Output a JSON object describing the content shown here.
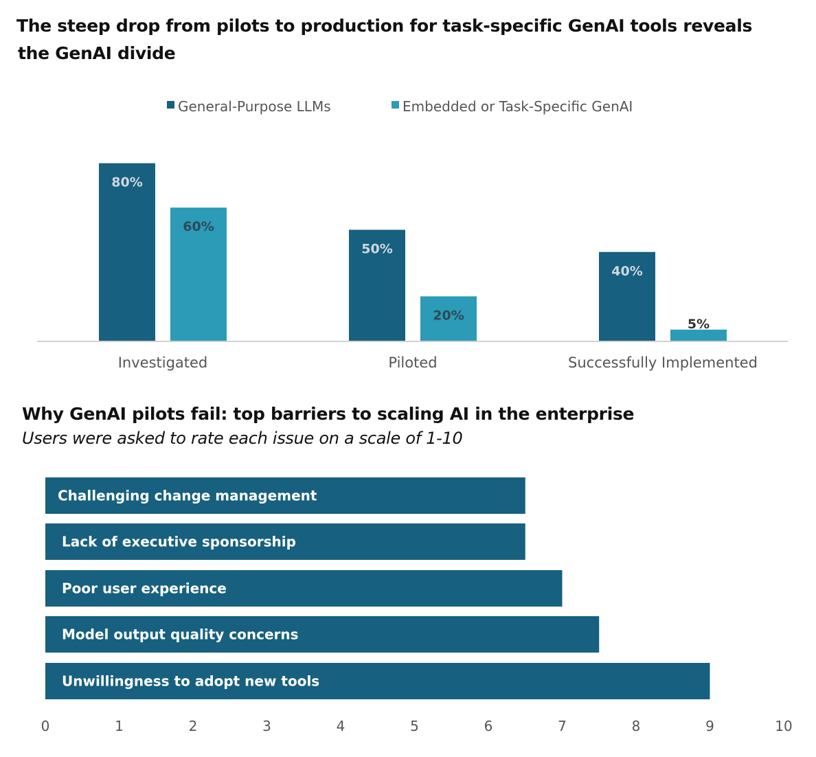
{
  "charts_text": {
    "title1_line1": "The steep drop from pilots to production for task-specific GenAI tools reveals",
    "title1_line2": "the GenAI divide",
    "title2": "Why GenAI pilots fail: top barriers to scaling AI in the enterprise",
    "subtitle2": "Users were asked to rate each issue on a scale of 1-10"
  },
  "colors": {
    "dark": "#17607f",
    "light": "#2b9bb7",
    "axis": "#d0d0d0",
    "text": "#555555"
  },
  "chart_data": [
    {
      "type": "bar",
      "title": "The steep drop from pilots to production for task-specific GenAI tools reveals the GenAI divide",
      "categories": [
        "Investigated",
        "Piloted",
        "Successfully Implemented"
      ],
      "series": [
        {
          "name": "General-Purpose LLMs",
          "values": [
            80,
            50,
            40
          ],
          "labels": [
            "80%",
            "50%",
            "40%"
          ]
        },
        {
          "name": "Embedded or Task-Specific GenAI",
          "values": [
            60,
            20,
            5
          ],
          "labels": [
            "60%",
            "20%",
            "5%"
          ]
        }
      ],
      "ylim": [
        0,
        100
      ],
      "legend": "top",
      "grid": false
    },
    {
      "type": "bar",
      "orientation": "horizontal",
      "title": "Why GenAI pilots fail: top barriers to scaling AI in the enterprise",
      "subtitle": "Users were asked to rate each issue on a scale of 1-10",
      "categories": [
        "Challenging change management",
        "Lack of executive sponsorship",
        "Poor user experience",
        "Model output quality concerns",
        "Unwillingness to adopt new tools"
      ],
      "values": [
        6.5,
        6.5,
        7,
        7.5,
        9
      ],
      "xlim": [
        0,
        10
      ],
      "xticks": [
        "0",
        "1",
        "2",
        "3",
        "4",
        "5",
        "6",
        "7",
        "8",
        "9",
        "10"
      ],
      "grid": false
    }
  ]
}
